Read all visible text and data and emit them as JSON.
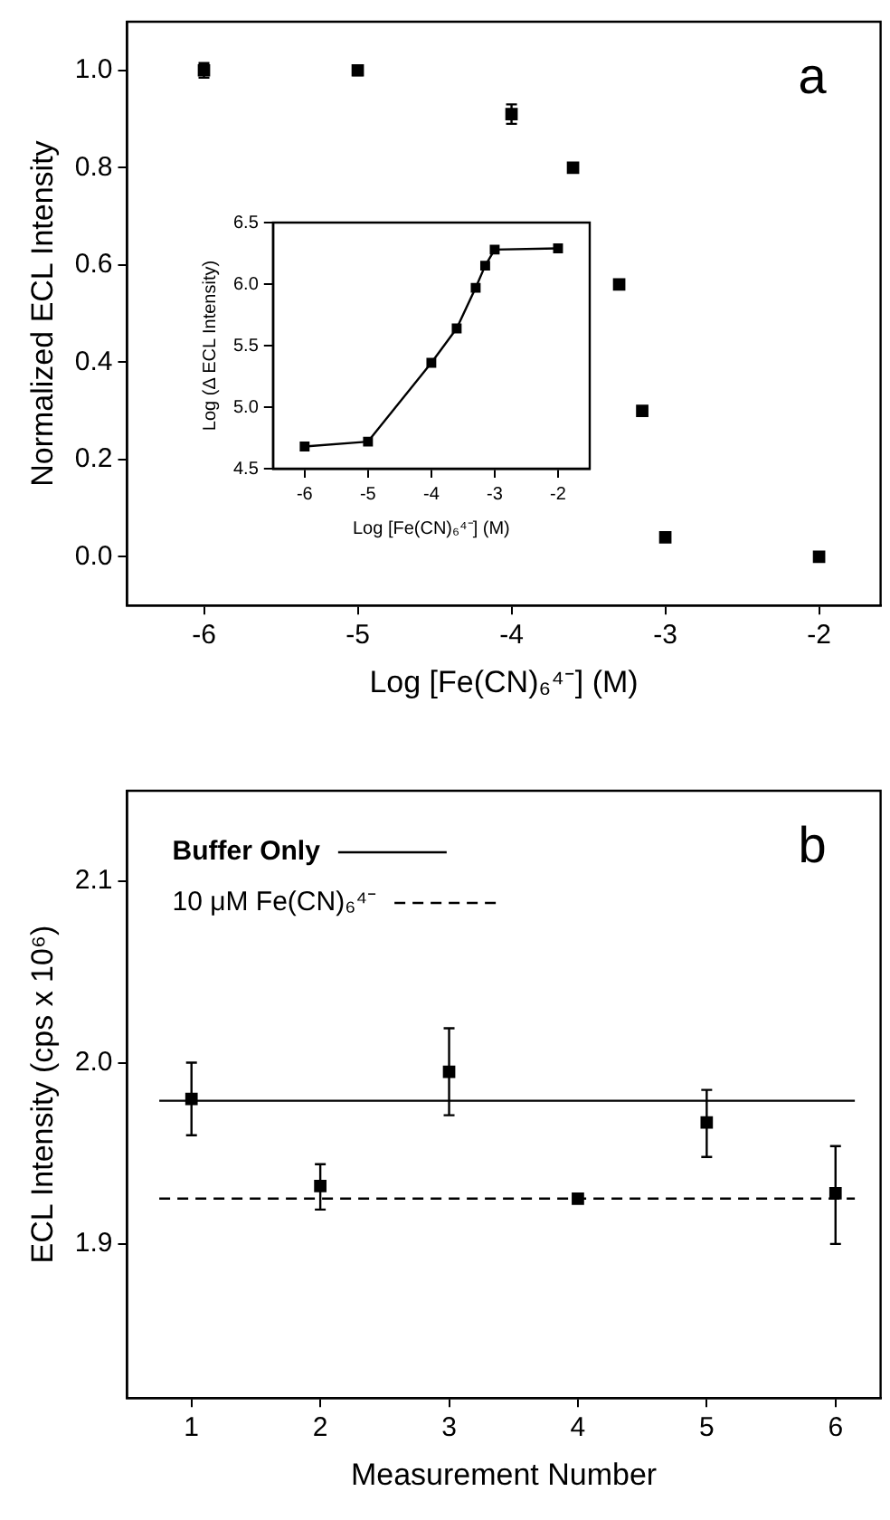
{
  "chart_data": [
    {
      "type": "scatter",
      "xlabel": "Log [Fe(CN)₆⁴⁻] (M)",
      "ylabel": "Normalized ECL Intensity",
      "annotations": [
        "a"
      ],
      "x": [
        -6,
        -5,
        -4,
        -3.6,
        -3.3,
        -3.15,
        -3,
        -2
      ],
      "values": [
        1.0,
        1.0,
        0.91,
        0.8,
        0.56,
        0.3,
        0.04,
        0.0
      ],
      "errors": [
        0.015,
        0.01,
        0.02,
        null,
        null,
        null,
        null,
        null
      ],
      "color": "#000000",
      "marker": "square",
      "grid": false,
      "xlim": [
        -6.5,
        -1.6
      ],
      "xticks": [
        -6,
        -5,
        -4,
        -3,
        -2
      ],
      "ylim": [
        -0.1,
        1.1
      ],
      "yticks": [
        {
          "value": 0,
          "label": "0.0"
        },
        0.2,
        0.4,
        0.6,
        0.8,
        {
          "value": 1,
          "label": "1.0"
        }
      ]
    },
    {
      "type": "line",
      "xlabel": "Log [Fe(CN)₆⁴⁻] (M)",
      "ylabel": "Log (Δ ECL Intensity)",
      "x": [
        -6,
        -5,
        -4,
        -3.6,
        -3.3,
        -3.15,
        -3,
        -2
      ],
      "values": [
        4.68,
        4.72,
        5.36,
        5.64,
        5.97,
        6.15,
        6.28,
        6.29
      ],
      "color": "#000000",
      "marker": "square",
      "line_style": "solid",
      "grid": false,
      "xlim": [
        -6.5,
        -1.5
      ],
      "xticks": [
        -6,
        -5,
        -4,
        -3,
        -2
      ],
      "ylim": [
        4.5,
        6.5
      ],
      "yticks": [
        4.5,
        {
          "value": 5,
          "label": "5.0"
        },
        5.5,
        {
          "value": 6,
          "label": "6.0"
        },
        6.5
      ]
    },
    {
      "type": "scatter",
      "xlabel": "Measurement Number",
      "ylabel": "ECL Intensity (cps x 10⁶)",
      "annotations": [
        "b"
      ],
      "legend": "top left",
      "marker": "square",
      "grid": false,
      "series": [
        {
          "color": "#000000",
          "x": [
            1,
            2,
            3,
            4,
            5,
            6
          ],
          "values": [
            1.98,
            1.932,
            1.995,
            1.925,
            1.967,
            1.928
          ],
          "errors": [
            [
              1.96,
              2.0
            ],
            [
              1.919,
              1.944
            ],
            [
              1.971,
              2.019
            ],
            null,
            [
              1.948,
              1.985
            ],
            [
              1.9,
              1.954
            ]
          ]
        },
        {
          "type": "line",
          "name": "Buffer Only",
          "color": "#000000",
          "line_style": "solid",
          "marker": "none",
          "x": [
            0.75,
            6.15
          ],
          "values": [
            1.979,
            1.979
          ]
        },
        {
          "type": "line",
          "name": "10 μM Fe(CN)₆⁴⁻",
          "color": "#000000",
          "line_style": "dashed",
          "marker": "none",
          "x": [
            0.75,
            6.15
          ],
          "values": [
            1.925,
            1.925
          ]
        }
      ],
      "xlim": [
        0.5,
        6.35
      ],
      "xticks": [
        1,
        2,
        3,
        4,
        5,
        6
      ],
      "ylim": [
        1.815,
        2.15
      ],
      "yticks": [
        {
          "value": 1.9,
          "label": "1.9"
        },
        {
          "value": 2,
          "label": "2.0"
        },
        {
          "value": 2.1,
          "label": "2.1"
        }
      ]
    }
  ]
}
